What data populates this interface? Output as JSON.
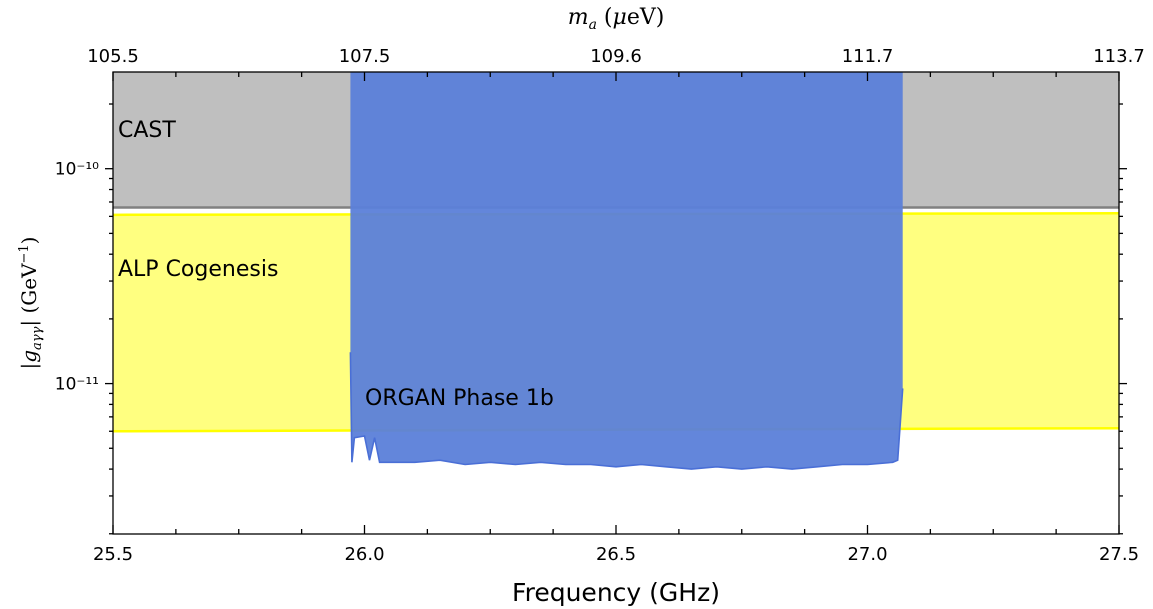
{
  "chart_data": {
    "type": "area",
    "xlabel": "Frequency (GHz)",
    "x2label": "m_a (μeV)",
    "ylabel": "|g_aγγ| (GeV⁻¹)",
    "xlim": [
      25.5,
      27.5
    ],
    "ylim_log10": [
      -11.7,
      -9.55
    ],
    "y_scale": "log",
    "x_ticks": [
      "25.5",
      "26.0",
      "26.5",
      "27.0",
      "27.5"
    ],
    "x_tick_values": [
      25.5,
      26.0,
      26.5,
      27.0,
      27.5
    ],
    "x2_ticks": [
      "105.5",
      "107.5",
      "109.6",
      "111.7",
      "113.7"
    ],
    "x2_tick_freq": [
      25.5,
      26.0,
      26.5,
      27.0,
      27.5
    ],
    "y_ticks": [
      "10⁻¹⁰",
      "10⁻¹¹"
    ],
    "y_tick_values": [
      1e-10,
      1e-11
    ],
    "regions": [
      {
        "name": "CAST",
        "color": "#bfbfbf",
        "x": [
          25.5,
          27.5
        ],
        "lower": 6.6e-11,
        "upper": "top"
      },
      {
        "name": "ALP Cogenesis",
        "color": "#ffff80",
        "edge_color": "#ffff00",
        "x": [
          25.5,
          27.5
        ],
        "lower": [
          6e-12,
          6.2e-12
        ],
        "upper": [
          6.1e-11,
          6.2e-11
        ]
      },
      {
        "name": "ORGAN Phase 1b",
        "color": "#5b7fd9",
        "edge_color": "#4a6fd6",
        "x_range": [
          25.97,
          27.07
        ],
        "limit_x": [
          25.972,
          25.975,
          25.98,
          26.0,
          26.01,
          26.02,
          26.03,
          26.05,
          26.1,
          26.15,
          26.2,
          26.25,
          26.3,
          26.35,
          26.4,
          26.45,
          26.5,
          26.55,
          26.6,
          26.65,
          26.7,
          26.75,
          26.8,
          26.85,
          26.9,
          26.95,
          27.0,
          27.05,
          27.06,
          27.07
        ],
        "limit_y": [
          1.4e-11,
          4.3e-12,
          5.6e-12,
          5.7e-12,
          4.4e-12,
          5.6e-12,
          4.3e-12,
          4.3e-12,
          4.3e-12,
          4.4e-12,
          4.2e-12,
          4.3e-12,
          4.2e-12,
          4.3e-12,
          4.2e-12,
          4.2e-12,
          4.1e-12,
          4.2e-12,
          4.1e-12,
          4e-12,
          4.1e-12,
          4e-12,
          4.1e-12,
          4e-12,
          4.1e-12,
          4.2e-12,
          4.2e-12,
          4.3e-12,
          4.4e-12,
          9.5e-12
        ]
      }
    ]
  }
}
